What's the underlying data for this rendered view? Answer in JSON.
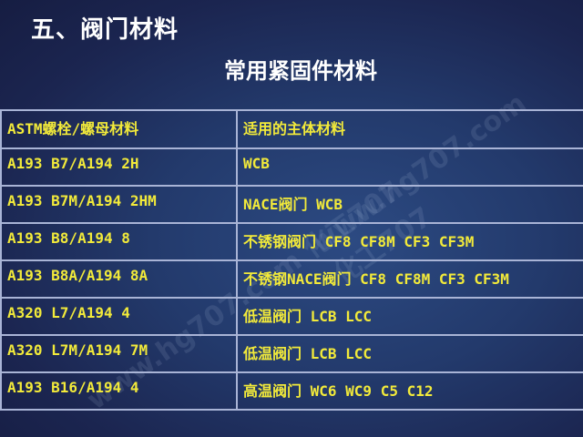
{
  "slide": {
    "title": "五、阀门材料",
    "subtitle": "常用紧固件材料",
    "watermark": "www.hg707.com 化工707"
  },
  "table": {
    "headers": [
      "ASTM螺栓/螺母材料",
      "适用的主体材料"
    ],
    "rows": [
      [
        "A193 B7/A194 2H",
        "WCB"
      ],
      [
        "A193 B7M/A194 2HM",
        "NACE阀门 WCB"
      ],
      [
        "A193 B8/A194 8",
        "不锈钢阀门 CF8 CF8M CF3 CF3M"
      ],
      [
        "A193 B8A/A194 8A",
        "不锈钢NACE阀门 CF8 CF8M CF3 CF3M"
      ],
      [
        "A320 L7/A194 4",
        "低温阀门 LCB LCC"
      ],
      [
        "A320 L7M/A194 7M",
        "低温阀门 LCB LCC"
      ],
      [
        "A193 B16/A194 4",
        "高温阀门 WC6 WC9 C5 C12"
      ]
    ]
  },
  "colors": {
    "text": "#f2ea3a",
    "background": "#1f2f60",
    "border": "#a9b4d6"
  }
}
